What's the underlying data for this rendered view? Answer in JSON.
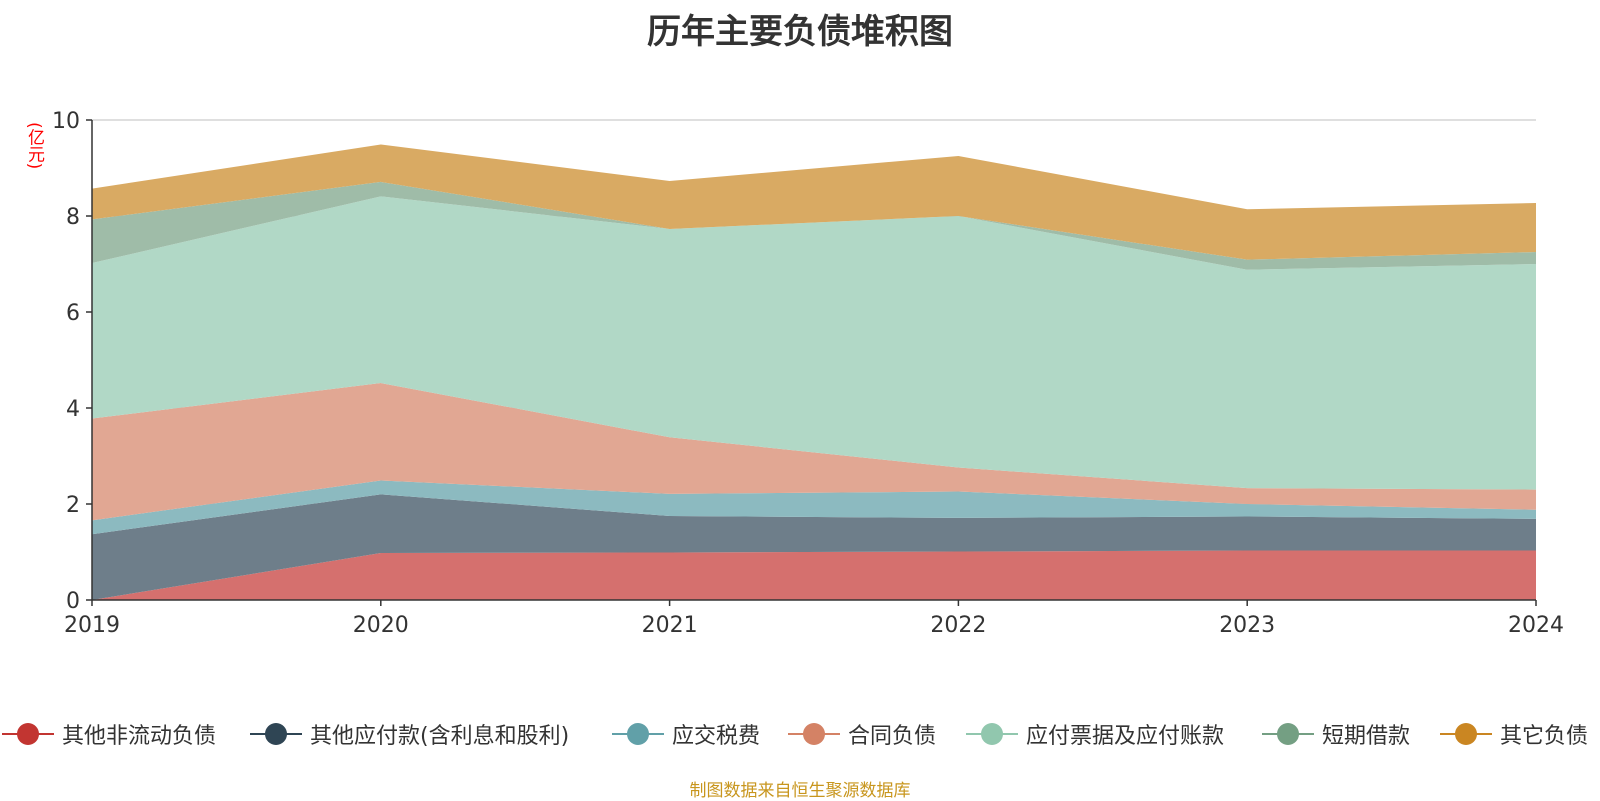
{
  "chart_data": {
    "type": "area",
    "title": "历年主要负债堆积图",
    "ylabel": "(亿元)",
    "xlabel": "",
    "source": "制图数据来自恒生聚源数据库",
    "ylim": [
      0,
      10
    ],
    "yticks": [
      0,
      2,
      4,
      6,
      8,
      10
    ],
    "x": [
      "2019",
      "2020",
      "2021",
      "2022",
      "2023",
      "2024"
    ],
    "stacked": true,
    "grid": true,
    "legend_position": "bottom",
    "series": [
      {
        "name": "其他非流动负债",
        "color": "#c23531",
        "fill": "#d5706e",
        "values": [
          0.0,
          0.98,
          0.99,
          1.01,
          1.03,
          1.03
        ]
      },
      {
        "name": "其他应付款(含利息和股利)",
        "color": "#2f4554",
        "fill": "#6e7e8a",
        "values": [
          1.37,
          1.22,
          0.76,
          0.7,
          0.71,
          0.66
        ]
      },
      {
        "name": "应交税费",
        "color": "#61a0a8",
        "fill": "#8cbac0",
        "values": [
          0.29,
          0.29,
          0.46,
          0.55,
          0.26,
          0.19
        ]
      },
      {
        "name": "合同负债",
        "color": "#d48265",
        "fill": "#e1a793",
        "values": [
          2.12,
          2.03,
          1.18,
          0.5,
          0.33,
          0.42
        ]
      },
      {
        "name": "应付票据及应付账款",
        "color": "#91c7ae",
        "fill": "#b1d8c6",
        "values": [
          3.24,
          3.89,
          4.34,
          5.24,
          4.55,
          4.7
        ]
      },
      {
        "name": "短期借款",
        "color": "#749f83",
        "fill": "#9fbca8",
        "values": [
          0.91,
          0.3,
          0.0,
          0.0,
          0.21,
          0.25
        ]
      },
      {
        "name": "其它负债",
        "color": "#ca8622",
        "fill": "#d9aa63",
        "values": [
          0.64,
          0.78,
          1.0,
          1.25,
          1.05,
          1.02
        ]
      }
    ]
  }
}
